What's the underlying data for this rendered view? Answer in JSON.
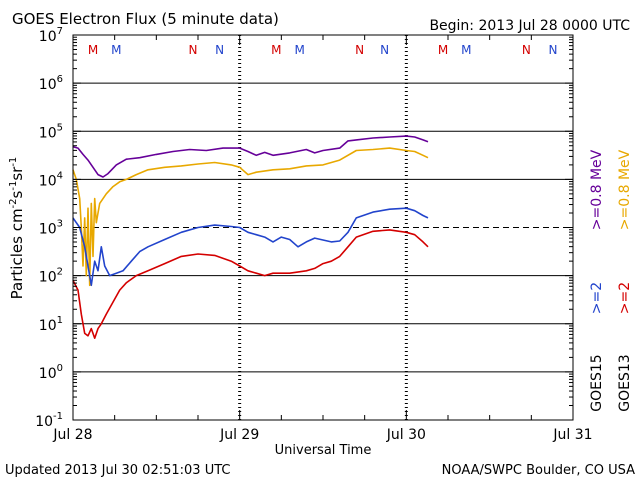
{
  "chart_data": {
    "type": "line",
    "title": "GOES Electron Flux (5 minute data)",
    "begin_label": "Begin: 2013 Jul 28 0000 UTC",
    "updated_label": "Updated 2013 Jul 30 02:51:03 UTC",
    "source_label": "NOAA/SWPC Boulder, CO USA",
    "xlabel": "Universal Time",
    "ylabel": "Particles cm-2s-1sr-1",
    "ylabel_parts": {
      "base": "Particles cm",
      "e1": "-2",
      "mid": "s",
      "e2": "-1",
      "mid2": "sr",
      "e3": "-1"
    },
    "x_unit": "days since 2013 Jul 28 0000 UTC",
    "xlim": [
      0,
      3
    ],
    "ylim_exp": [
      -1,
      7
    ],
    "y_scale": "log",
    "x_ticks": [
      {
        "value": 0,
        "label": "Jul 28"
      },
      {
        "value": 1,
        "label": "Jul 29"
      },
      {
        "value": 2,
        "label": "Jul 30"
      },
      {
        "value": 3,
        "label": "Jul 31"
      }
    ],
    "y_ticks": [
      {
        "exp": -1,
        "base": "10",
        "power": "-1"
      },
      {
        "exp": 0,
        "base": "10",
        "power": "0"
      },
      {
        "exp": 1,
        "base": "10",
        "power": "1"
      },
      {
        "exp": 2,
        "base": "10",
        "power": "2"
      },
      {
        "exp": 3,
        "base": "10",
        "power": "3"
      },
      {
        "exp": 4,
        "base": "10",
        "power": "4"
      },
      {
        "exp": 5,
        "base": "10",
        "power": "5"
      },
      {
        "exp": 6,
        "base": "10",
        "power": "6"
      },
      {
        "exp": 7,
        "base": "10",
        "power": "7"
      }
    ],
    "threshold_exp": 3,
    "markers": [
      {
        "x": 0.12,
        "label": "M",
        "color": "#d40000"
      },
      {
        "x": 0.26,
        "label": "M",
        "color": "#2244cc"
      },
      {
        "x": 0.72,
        "label": "N",
        "color": "#d40000"
      },
      {
        "x": 0.88,
        "label": "N",
        "color": "#2244cc"
      },
      {
        "x": 1.22,
        "label": "M",
        "color": "#d40000"
      },
      {
        "x": 1.36,
        "label": "M",
        "color": "#2244cc"
      },
      {
        "x": 1.72,
        "label": "N",
        "color": "#d40000"
      },
      {
        "x": 1.87,
        "label": "N",
        "color": "#2244cc"
      },
      {
        "x": 2.22,
        "label": "M",
        "color": "#d40000"
      },
      {
        "x": 2.36,
        "label": "M",
        "color": "#2244cc"
      },
      {
        "x": 2.72,
        "label": "N",
        "color": "#d40000"
      },
      {
        "x": 2.88,
        "label": "N",
        "color": "#2244cc"
      }
    ],
    "legend": {
      "satellites": [
        {
          "label": "GOES15",
          "color": "#000000"
        },
        {
          "label": "GOES13",
          "color": "#000000"
        }
      ],
      "entries": [
        {
          "label": ">=0.8 MeV",
          "color": "#660099",
          "col": 0,
          "row": 0
        },
        {
          "label": ">=2",
          "color": "#2244cc",
          "col": 0,
          "row": 1
        },
        {
          "label": ">=0.8 MeV",
          "color": "#e8a800",
          "col": 1,
          "row": 0
        },
        {
          "label": ">=2",
          "color": "#d40000",
          "col": 1,
          "row": 1
        }
      ]
    },
    "series": [
      {
        "name": "GOES15 >=0.8 MeV",
        "color": "#660099",
        "points": [
          [
            0,
            4.68
          ],
          [
            0.03,
            4.65
          ],
          [
            0.06,
            4.52
          ],
          [
            0.09,
            4.4
          ],
          [
            0.12,
            4.25
          ],
          [
            0.15,
            4.1
          ],
          [
            0.18,
            4.05
          ],
          [
            0.21,
            4.12
          ],
          [
            0.26,
            4.3
          ],
          [
            0.32,
            4.42
          ],
          [
            0.4,
            4.45
          ],
          [
            0.5,
            4.52
          ],
          [
            0.6,
            4.58
          ],
          [
            0.7,
            4.62
          ],
          [
            0.8,
            4.6
          ],
          [
            0.9,
            4.65
          ],
          [
            1.0,
            4.65
          ],
          [
            1.05,
            4.58
          ],
          [
            1.1,
            4.5
          ],
          [
            1.15,
            4.56
          ],
          [
            1.2,
            4.5
          ],
          [
            1.3,
            4.55
          ],
          [
            1.4,
            4.62
          ],
          [
            1.45,
            4.55
          ],
          [
            1.5,
            4.6
          ],
          [
            1.6,
            4.65
          ],
          [
            1.65,
            4.8
          ],
          [
            1.7,
            4.82
          ],
          [
            1.8,
            4.86
          ],
          [
            1.9,
            4.88
          ],
          [
            2.0,
            4.9
          ],
          [
            2.05,
            4.88
          ],
          [
            2.1,
            4.82
          ],
          [
            2.13,
            4.78
          ]
        ]
      },
      {
        "name": "GOES13 >=0.8 MeV",
        "color": "#e8a800",
        "points": [
          [
            0,
            4.2
          ],
          [
            0.02,
            4.0
          ],
          [
            0.04,
            3.6
          ],
          [
            0.05,
            3.0
          ],
          [
            0.06,
            2.2
          ],
          [
            0.07,
            3.2
          ],
          [
            0.08,
            2.0
          ],
          [
            0.09,
            3.4
          ],
          [
            0.1,
            1.8
          ],
          [
            0.11,
            3.5
          ],
          [
            0.12,
            2.4
          ],
          [
            0.13,
            3.6
          ],
          [
            0.14,
            3.1
          ],
          [
            0.16,
            3.5
          ],
          [
            0.2,
            3.7
          ],
          [
            0.24,
            3.85
          ],
          [
            0.28,
            3.95
          ],
          [
            0.32,
            4.0
          ],
          [
            0.38,
            4.1
          ],
          [
            0.45,
            4.2
          ],
          [
            0.55,
            4.25
          ],
          [
            0.65,
            4.28
          ],
          [
            0.75,
            4.32
          ],
          [
            0.85,
            4.35
          ],
          [
            0.95,
            4.3
          ],
          [
            1.0,
            4.25
          ],
          [
            1.05,
            4.1
          ],
          [
            1.1,
            4.15
          ],
          [
            1.2,
            4.2
          ],
          [
            1.3,
            4.22
          ],
          [
            1.4,
            4.28
          ],
          [
            1.5,
            4.3
          ],
          [
            1.6,
            4.4
          ],
          [
            1.7,
            4.6
          ],
          [
            1.8,
            4.62
          ],
          [
            1.9,
            4.65
          ],
          [
            2.0,
            4.6
          ],
          [
            2.05,
            4.58
          ],
          [
            2.1,
            4.5
          ],
          [
            2.13,
            4.45
          ]
        ]
      },
      {
        "name": "GOES15 >=2 MeV",
        "color": "#2244cc",
        "points": [
          [
            0,
            3.2
          ],
          [
            0.04,
            3.0
          ],
          [
            0.07,
            2.6
          ],
          [
            0.09,
            2.2
          ],
          [
            0.11,
            1.8
          ],
          [
            0.13,
            2.3
          ],
          [
            0.15,
            2.1
          ],
          [
            0.17,
            2.6
          ],
          [
            0.19,
            2.2
          ],
          [
            0.22,
            2.0
          ],
          [
            0.26,
            2.05
          ],
          [
            0.3,
            2.1
          ],
          [
            0.35,
            2.3
          ],
          [
            0.4,
            2.5
          ],
          [
            0.45,
            2.6
          ],
          [
            0.55,
            2.75
          ],
          [
            0.65,
            2.9
          ],
          [
            0.75,
            3.0
          ],
          [
            0.85,
            3.05
          ],
          [
            0.95,
            3.02
          ],
          [
            1.0,
            3.0
          ],
          [
            1.05,
            2.9
          ],
          [
            1.1,
            2.85
          ],
          [
            1.15,
            2.8
          ],
          [
            1.2,
            2.7
          ],
          [
            1.25,
            2.8
          ],
          [
            1.3,
            2.75
          ],
          [
            1.35,
            2.6
          ],
          [
            1.4,
            2.7
          ],
          [
            1.45,
            2.78
          ],
          [
            1.55,
            2.7
          ],
          [
            1.6,
            2.72
          ],
          [
            1.65,
            2.9
          ],
          [
            1.7,
            3.2
          ],
          [
            1.8,
            3.32
          ],
          [
            1.9,
            3.38
          ],
          [
            2.0,
            3.4
          ],
          [
            2.05,
            3.35
          ],
          [
            2.1,
            3.25
          ],
          [
            2.13,
            3.2
          ]
        ]
      },
      {
        "name": "GOES13 >=2 MeV",
        "color": "#d40000",
        "points": [
          [
            0,
            1.9
          ],
          [
            0.03,
            1.7
          ],
          [
            0.05,
            1.2
          ],
          [
            0.07,
            0.8
          ],
          [
            0.09,
            0.75
          ],
          [
            0.11,
            0.9
          ],
          [
            0.13,
            0.7
          ],
          [
            0.15,
            0.9
          ],
          [
            0.17,
            1.0
          ],
          [
            0.2,
            1.2
          ],
          [
            0.24,
            1.45
          ],
          [
            0.28,
            1.7
          ],
          [
            0.32,
            1.85
          ],
          [
            0.38,
            2.0
          ],
          [
            0.45,
            2.1
          ],
          [
            0.55,
            2.25
          ],
          [
            0.65,
            2.4
          ],
          [
            0.75,
            2.45
          ],
          [
            0.85,
            2.42
          ],
          [
            0.95,
            2.3
          ],
          [
            1.0,
            2.2
          ],
          [
            1.05,
            2.1
          ],
          [
            1.1,
            2.05
          ],
          [
            1.15,
            2.0
          ],
          [
            1.2,
            2.05
          ],
          [
            1.3,
            2.05
          ],
          [
            1.4,
            2.1
          ],
          [
            1.45,
            2.15
          ],
          [
            1.5,
            2.25
          ],
          [
            1.55,
            2.3
          ],
          [
            1.6,
            2.4
          ],
          [
            1.65,
            2.6
          ],
          [
            1.7,
            2.8
          ],
          [
            1.8,
            2.92
          ],
          [
            1.9,
            2.95
          ],
          [
            2.0,
            2.9
          ],
          [
            2.05,
            2.85
          ],
          [
            2.1,
            2.7
          ],
          [
            2.13,
            2.6
          ]
        ]
      }
    ]
  }
}
